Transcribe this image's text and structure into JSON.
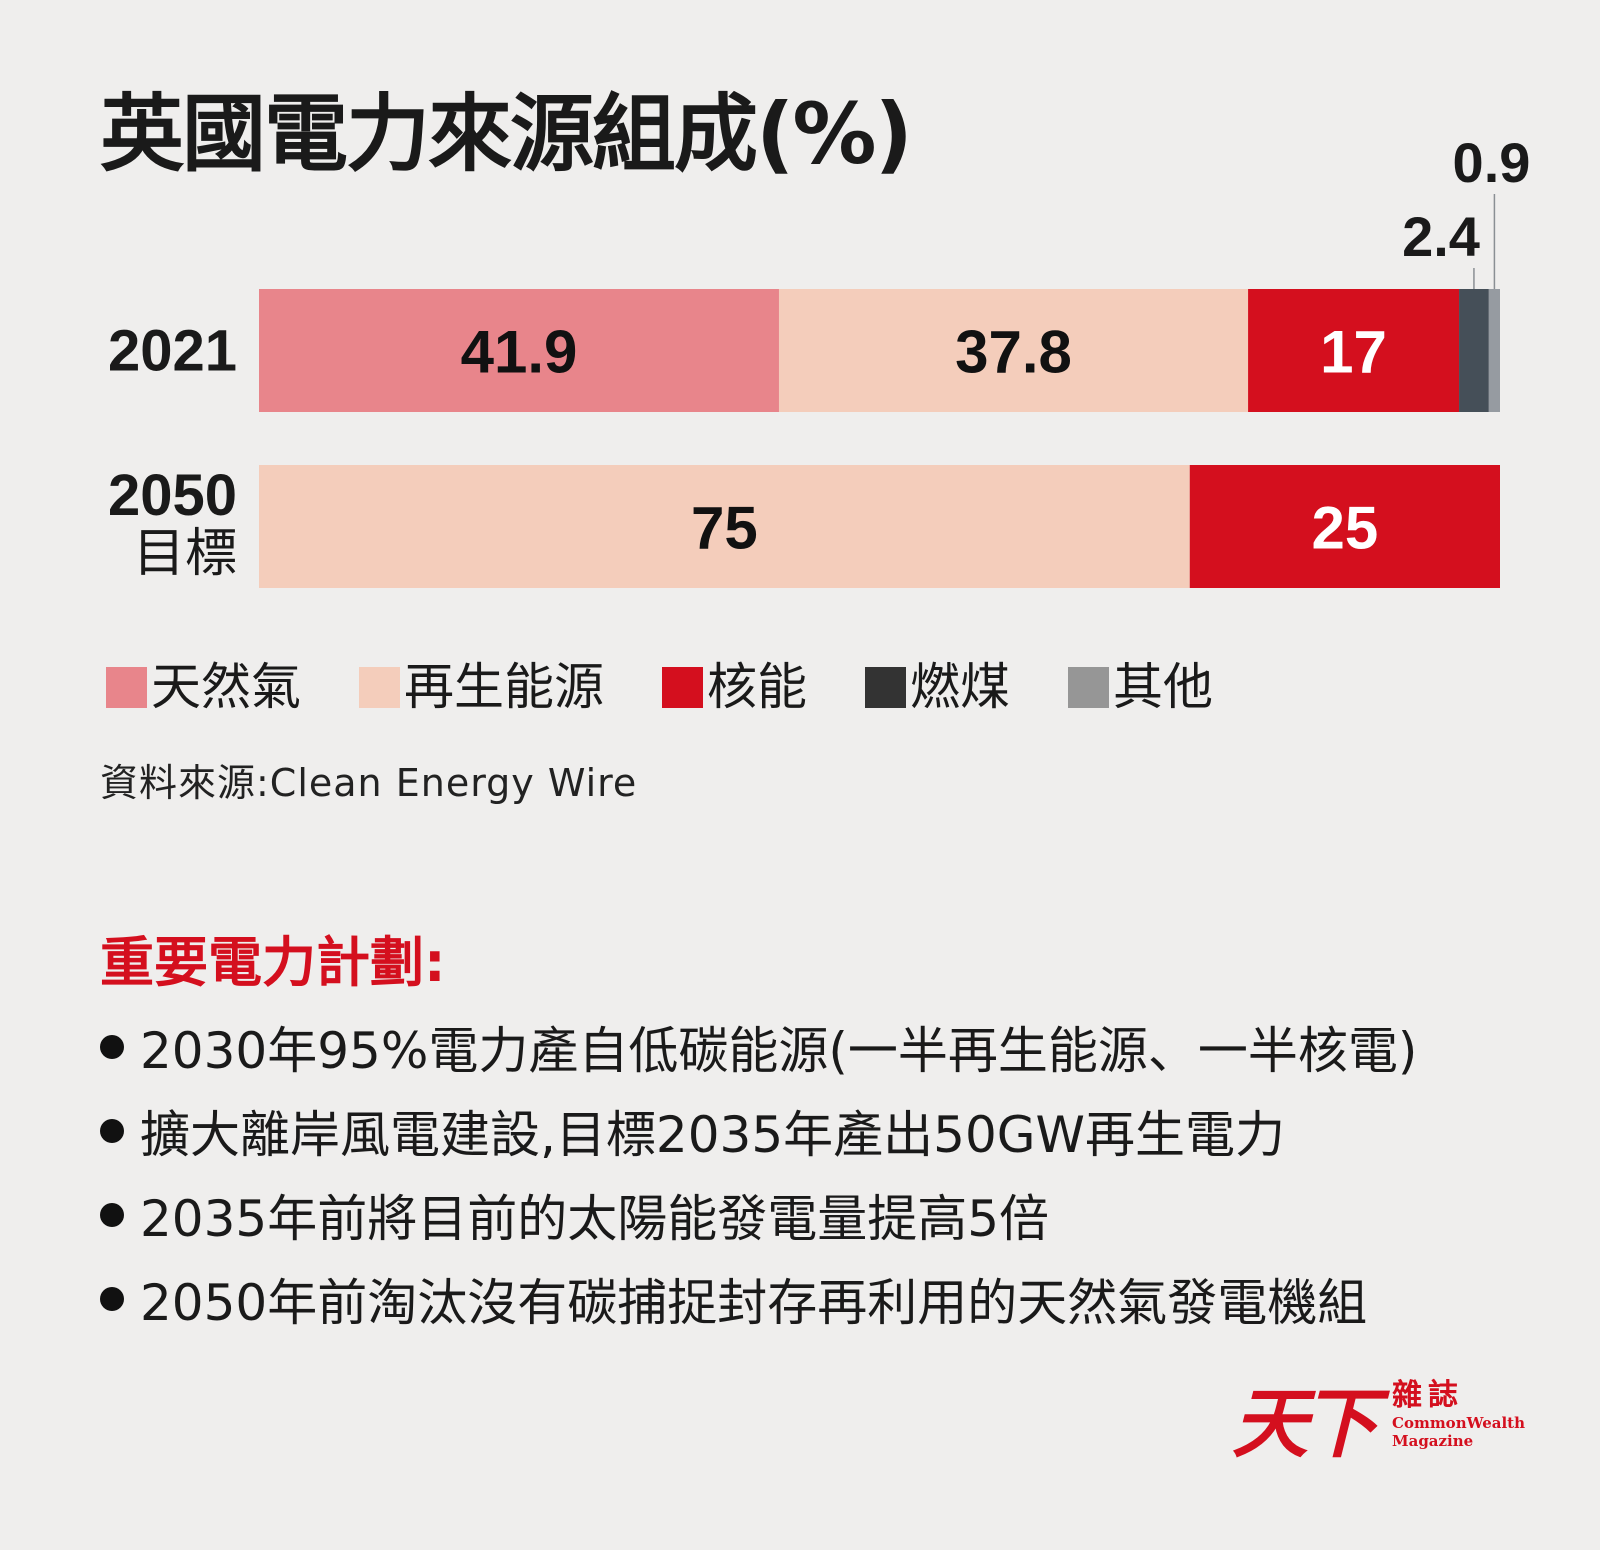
{
  "title": "英國電力來源組成(%)",
  "colors": {
    "gas": "#e8858b",
    "renewable": "#f4cdbb",
    "nuclear": "#d40f1e",
    "coal": "#454f58",
    "other": "#969ba1",
    "accent": "#d40f1e"
  },
  "chart_data": {
    "type": "bar",
    "orientation": "horizontal",
    "stacked": true,
    "title": "英國電力來源組成(%)",
    "categories": [
      "2021",
      "2050\n目標"
    ],
    "series": [
      {
        "name": "天然氣",
        "values": [
          41.9,
          0
        ],
        "color": "#e8858b"
      },
      {
        "name": "再生能源",
        "values": [
          37.8,
          75
        ],
        "color": "#f4cdbb"
      },
      {
        "name": "核能",
        "values": [
          17,
          25
        ],
        "color": "#d40f1e"
      },
      {
        "name": "燃煤",
        "values": [
          2.4,
          0
        ],
        "color": "#454f58"
      },
      {
        "name": "其他",
        "values": [
          0.9,
          0
        ],
        "color": "#969ba1"
      }
    ],
    "xlim": [
      0,
      100
    ],
    "legend_position": "bottom",
    "grid": false
  },
  "legend": [
    {
      "label": "天然氣",
      "color": "#e8858b"
    },
    {
      "label": "再生能源",
      "color": "#f4cdbb"
    },
    {
      "label": "核能",
      "color": "#d40f1e"
    },
    {
      "label": "燃煤",
      "color": "#333333"
    },
    {
      "label": "其他",
      "color": "#969696"
    }
  ],
  "source": "資料來源:Clean Energy Wire",
  "plans_heading": "重要電力計劃:",
  "plans": [
    "2030年95%電力產自低碳能源(一半再生能源、一半核電)",
    "擴大離岸風電建設,目標2035年產出50GW再生電力",
    "2035年前將目前的太陽能發電量提高5倍",
    "2050年前淘汰沒有碳捕捉封存再利用的天然氣發電機組"
  ],
  "logo": {
    "mark": "天下",
    "cn": "雜誌",
    "en_line1": "CommonWealth",
    "en_line2": "Magazine"
  }
}
